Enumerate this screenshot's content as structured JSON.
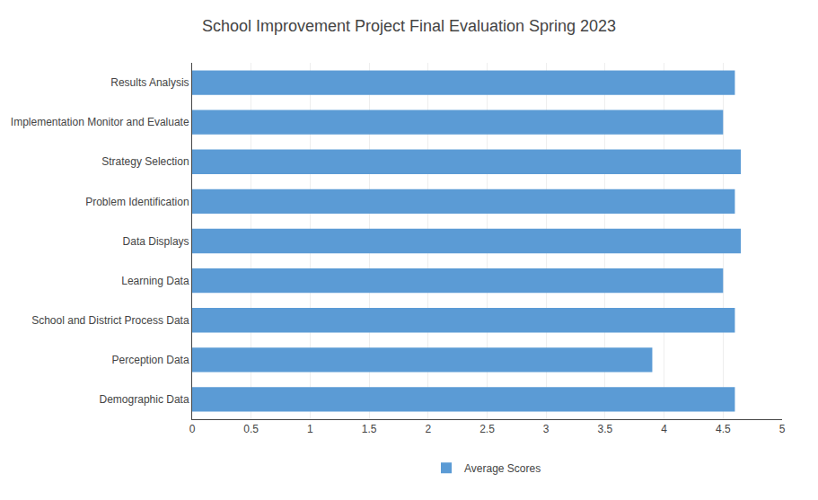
{
  "chart_data": {
    "type": "bar",
    "orientation": "horizontal",
    "title": "School Improvement Project Final Evaluation Spring 2023",
    "categories": [
      "Demographic Data",
      "Perception Data",
      "School and District Process Data",
      "Learning Data",
      "Data Displays",
      "Problem Identification",
      "Strategy Selection",
      "Implementation Monitor and Evaluate",
      "Results Analysis"
    ],
    "series": [
      {
        "name": "Average Scores",
        "color": "#5b9bd5",
        "values": [
          4.6,
          3.9,
          4.6,
          4.5,
          4.65,
          4.6,
          4.65,
          4.5,
          4.6
        ]
      }
    ],
    "xlim": [
      0,
      5
    ],
    "xticks": [
      0,
      0.5,
      1,
      1.5,
      2,
      2.5,
      3,
      3.5,
      4,
      4.5,
      5
    ],
    "grid": true,
    "legend": "bottom"
  }
}
